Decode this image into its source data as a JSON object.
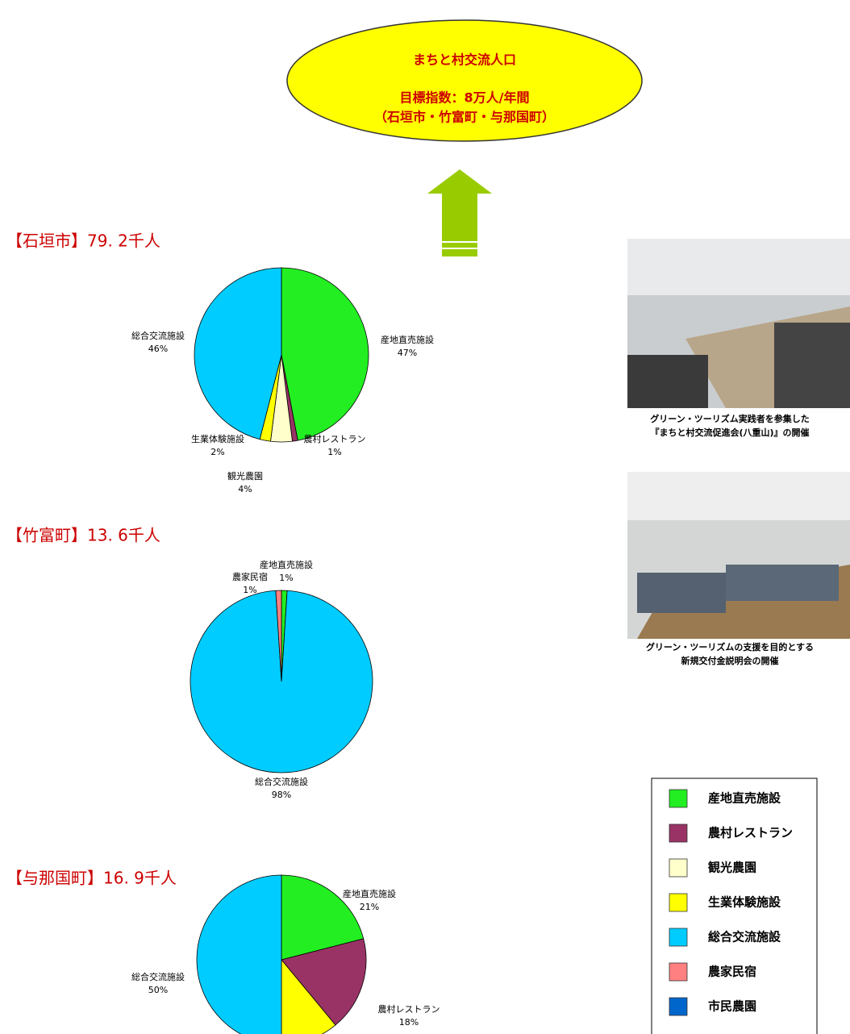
{
  "header": {
    "lines": [
      "まちと村交流人口",
      "目標指数：8万人/年間",
      "（石垣市・竹富町・与那国町）"
    ]
  },
  "chart_data": [
    {
      "type": "pie",
      "title": "【石垣市】79. 2千人",
      "categories": [
        "産地直売施設",
        "農村レストラン",
        "観光農園",
        "生業体験施設",
        "総合交流施設"
      ],
      "values": [
        47,
        1,
        4,
        2,
        46
      ],
      "value_labels": [
        "47%",
        "1%",
        "4%",
        "2%",
        "46%"
      ],
      "colors": [
        "#22ee22",
        "#993366",
        "#ffffcc",
        "#ffff00",
        "#00ccff"
      ]
    },
    {
      "type": "pie",
      "title": "【竹富町】13. 6千人",
      "categories": [
        "産地直売施設",
        "総合交流施設",
        "農家民宿"
      ],
      "values": [
        1,
        98,
        1
      ],
      "value_labels": [
        "1%",
        "98%",
        "1%"
      ],
      "colors": [
        "#22ee22",
        "#00ccff",
        "#ff8080"
      ]
    },
    {
      "type": "pie",
      "title": "【与那国町】16. 9千人",
      "categories": [
        "産地直売施設",
        "農村レストラン",
        null,
        "総合交流施設"
      ],
      "values": [
        21,
        18,
        11,
        50
      ],
      "value_labels": [
        "21%",
        "18%",
        null,
        "50%"
      ],
      "colors": [
        "#22ee22",
        "#993366",
        "#ffff00",
        "#00ccff"
      ]
    }
  ],
  "photos": [
    {
      "caption": [
        "グリーン・ツーリズム実践者を参集した",
        "『まちと村交流促進会(八重山)』の開催"
      ]
    },
    {
      "caption": [
        "グリーン・ツーリズムの支援を目的とする",
        "新規交付金説明会の開催"
      ]
    }
  ],
  "legend": [
    {
      "name": "産地直売施設",
      "color": "#22ee22"
    },
    {
      "name": "農村レストラン",
      "color": "#993366"
    },
    {
      "name": "観光農園",
      "color": "#ffffcc"
    },
    {
      "name": "生業体験施設",
      "color": "#ffff00"
    },
    {
      "name": "総合交流施設",
      "color": "#00ccff"
    },
    {
      "name": "農家民宿",
      "color": "#ff8080"
    },
    {
      "name": "市民農園",
      "color": "#0066cc"
    }
  ]
}
